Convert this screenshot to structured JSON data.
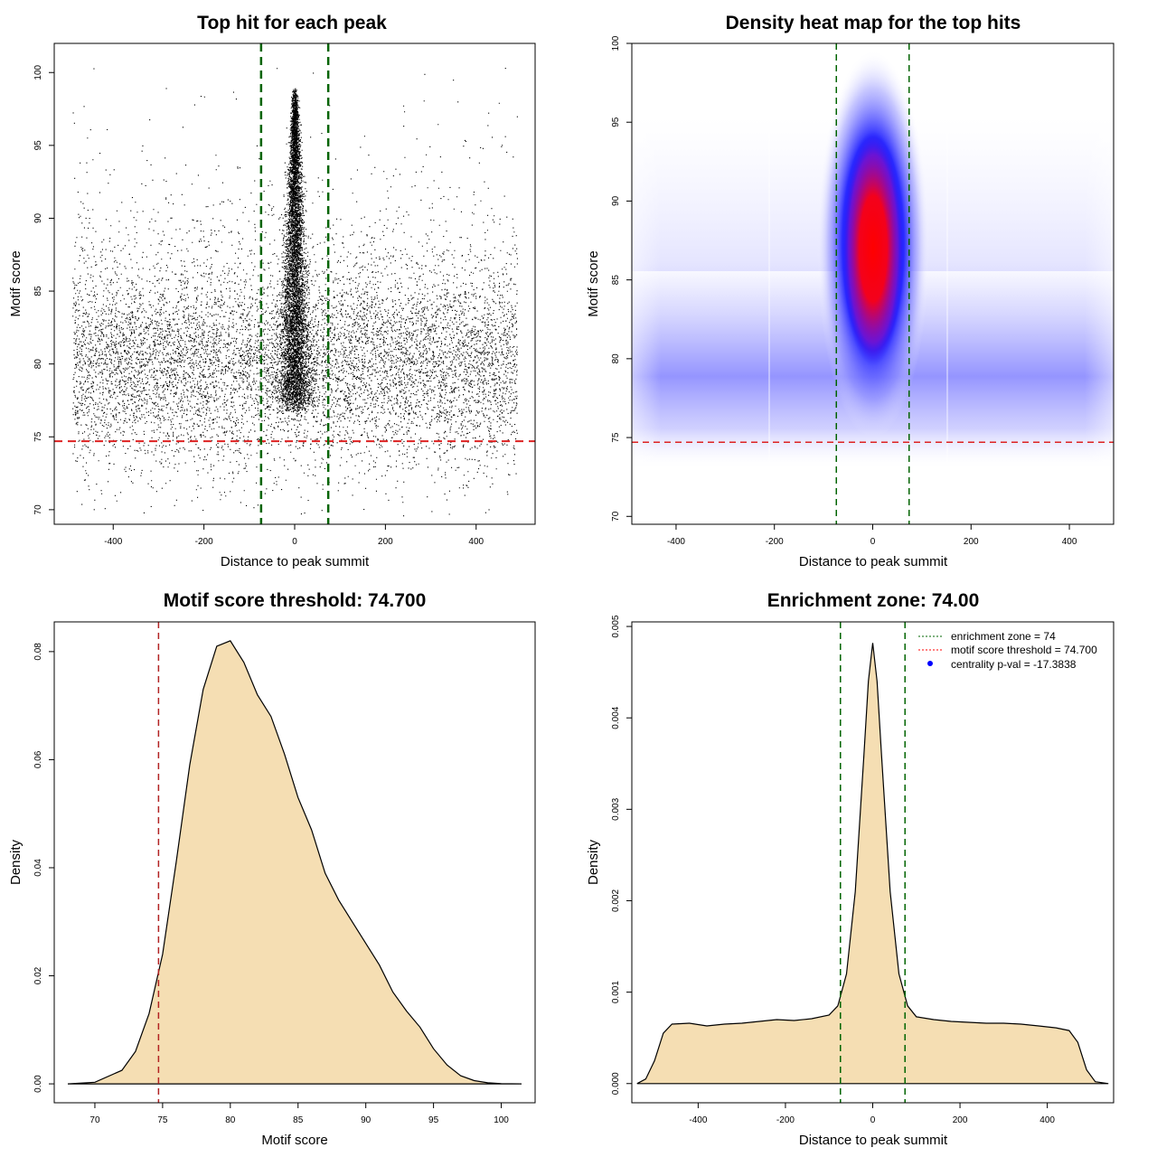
{
  "chart_data": [
    {
      "type": "scatter",
      "title": "Top hit for each peak",
      "xlabel": "Distance to peak summit",
      "ylabel": "Motif score",
      "xlim": [
        -530,
        530
      ],
      "ylim": [
        69,
        102
      ],
      "xticks": [
        -400,
        -200,
        0,
        200,
        400
      ],
      "yticks": [
        70,
        75,
        80,
        85,
        90,
        95,
        100
      ],
      "xtick_labels": [
        "-400",
        "-200",
        "0",
        "200",
        "400"
      ],
      "ytick_labels": [
        "70",
        "75",
        "80",
        "85",
        "90",
        "95",
        "100"
      ],
      "reference_lines": {
        "motif_score_threshold": 74.7,
        "enrichment_zone": [
          -74,
          74
        ]
      },
      "point_distribution": {
        "background": {
          "x_range": [
            -490,
            490
          ],
          "y_mode": 80,
          "y_range": [
            70,
            98
          ]
        },
        "central": {
          "x_center": 0,
          "y_range": [
            77,
            100
          ]
        }
      }
    },
    {
      "type": "heatmap",
      "title": "Density heat map for the top hits",
      "xlabel": "Distance to peak summit",
      "ylabel": "Motif score",
      "xlim": [
        -490,
        490
      ],
      "ylim": [
        69.5,
        100
      ],
      "xticks": [
        -400,
        -200,
        0,
        200,
        400
      ],
      "yticks": [
        70,
        75,
        80,
        85,
        90,
        95,
        100
      ],
      "xtick_labels": [
        "-400",
        "-200",
        "0",
        "200",
        "400"
      ],
      "ytick_labels": [
        "70",
        "75",
        "80",
        "85",
        "90",
        "95",
        "100"
      ],
      "reference_lines": {
        "motif_score_threshold": 74.7,
        "enrichment_zone": [
          -74,
          74
        ]
      },
      "density_peak": {
        "x": 0,
        "y": 88
      },
      "colors": {
        "low": "#ffffff",
        "mid": "#0000ff",
        "high": "#ff0000"
      }
    },
    {
      "type": "area",
      "title": "Motif score threshold: 74.700",
      "xlabel": "Motif score",
      "ylabel": "Density",
      "xlim": [
        67,
        102.5
      ],
      "ylim": [
        -0.0035,
        0.0855
      ],
      "xticks": [
        70,
        75,
        80,
        85,
        90,
        95,
        100
      ],
      "yticks": [
        0,
        0.02,
        0.04,
        0.06,
        0.08
      ],
      "xtick_labels": [
        "70",
        "75",
        "80",
        "85",
        "90",
        "95",
        "100"
      ],
      "ytick_labels": [
        "0.00",
        "0.02",
        "0.04",
        "0.06",
        "0.08"
      ],
      "reference_lines": {
        "motif_score_threshold": 74.7
      },
      "x": [
        68,
        70,
        72,
        73,
        74,
        75,
        76,
        77,
        78,
        79,
        80,
        81,
        82,
        83,
        84,
        85,
        86,
        87,
        88,
        89,
        90,
        91,
        92,
        93,
        94,
        95,
        96,
        97,
        98,
        99,
        100,
        101.5
      ],
      "y": [
        0,
        0.0003,
        0.0025,
        0.006,
        0.013,
        0.024,
        0.041,
        0.059,
        0.073,
        0.081,
        0.082,
        0.078,
        0.072,
        0.068,
        0.061,
        0.053,
        0.047,
        0.039,
        0.034,
        0.03,
        0.026,
        0.022,
        0.017,
        0.0135,
        0.0105,
        0.0065,
        0.0035,
        0.0015,
        0.0006,
        0.0002,
        5e-05,
        0
      ]
    },
    {
      "type": "area",
      "title": "Enrichment zone: 74.00",
      "xlabel": "Distance to peak summit",
      "ylabel": "Density",
      "xlim": [
        -552,
        552
      ],
      "ylim": [
        -0.00021,
        0.00505
      ],
      "xticks": [
        -400,
        -200,
        0,
        200,
        400
      ],
      "yticks": [
        0,
        0.001,
        0.002,
        0.003,
        0.004,
        0.005
      ],
      "xtick_labels": [
        "-400",
        "-200",
        "0",
        "200",
        "400"
      ],
      "ytick_labels": [
        "0.000",
        "0.001",
        "0.002",
        "0.003",
        "0.004",
        "0.005"
      ],
      "reference_lines": {
        "enrichment_zone": [
          -74,
          74
        ]
      },
      "legend": {
        "position": "top-right",
        "entries": [
          {
            "label": "enrichment zone = 74",
            "color": "#006400",
            "style": "dotted"
          },
          {
            "label": "motif score threshold = 74.700",
            "color": "#ff0000",
            "style": "dotted"
          },
          {
            "label": "centrality p-val = -17.3838",
            "color": "#0000ff",
            "style": "point"
          }
        ]
      },
      "x": [
        -540,
        -520,
        -500,
        -480,
        -460,
        -420,
        -380,
        -340,
        -300,
        -260,
        -220,
        -180,
        -140,
        -100,
        -80,
        -60,
        -40,
        -20,
        -10,
        0,
        10,
        20,
        40,
        60,
        80,
        100,
        140,
        180,
        220,
        260,
        300,
        340,
        380,
        420,
        450,
        470,
        490,
        510,
        540
      ],
      "y": [
        0,
        5e-05,
        0.00025,
        0.00055,
        0.00065,
        0.00066,
        0.00063,
        0.00065,
        0.00066,
        0.00068,
        0.0007,
        0.00069,
        0.00071,
        0.00075,
        0.00085,
        0.0012,
        0.0021,
        0.0036,
        0.0044,
        0.00482,
        0.0044,
        0.0036,
        0.0021,
        0.0012,
        0.00085,
        0.00073,
        0.0007,
        0.00068,
        0.00067,
        0.00066,
        0.00066,
        0.00065,
        0.00063,
        0.00061,
        0.00058,
        0.00045,
        0.00015,
        2e-05,
        0
      ]
    }
  ]
}
